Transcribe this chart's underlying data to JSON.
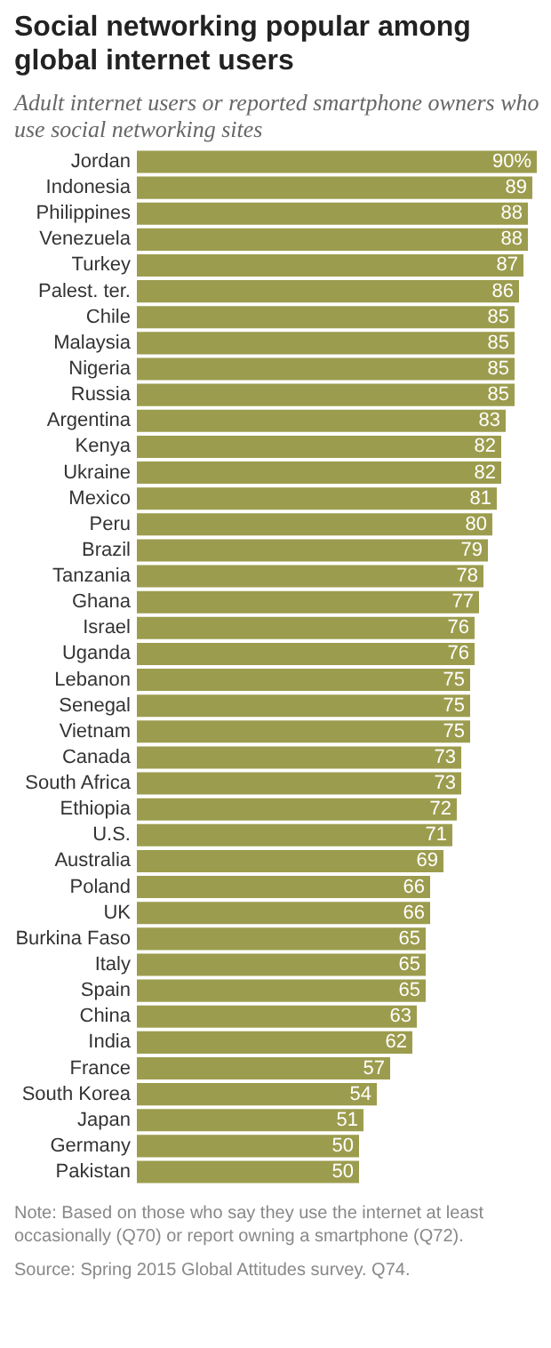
{
  "chart_data": {
    "type": "bar",
    "orientation": "horizontal",
    "title": "Social networking popular among global internet users",
    "subtitle": "Adult internet users or reported smartphone owners who use social networking sites",
    "categories": [
      "Jordan",
      "Indonesia",
      "Philippines",
      "Venezuela",
      "Turkey",
      "Palest. ter.",
      "Chile",
      "Malaysia",
      "Nigeria",
      "Russia",
      "Argentina",
      "Kenya",
      "Ukraine",
      "Mexico",
      "Peru",
      "Brazil",
      "Tanzania",
      "Ghana",
      "Israel",
      "Uganda",
      "Lebanon",
      "Senegal",
      "Vietnam",
      "Canada",
      "South Africa",
      "Ethiopia",
      "U.S.",
      "Australia",
      "Poland",
      "UK",
      "Burkina Faso",
      "Italy",
      "Spain",
      "China",
      "India",
      "France",
      "South Korea",
      "Japan",
      "Germany",
      "Pakistan"
    ],
    "values": [
      90,
      89,
      88,
      88,
      87,
      86,
      85,
      85,
      85,
      85,
      83,
      82,
      82,
      81,
      80,
      79,
      78,
      77,
      76,
      76,
      75,
      75,
      75,
      73,
      73,
      72,
      71,
      69,
      66,
      66,
      65,
      65,
      65,
      63,
      62,
      57,
      54,
      51,
      50,
      50
    ],
    "value_labels": [
      "90%",
      "89",
      "88",
      "88",
      "87",
      "86",
      "85",
      "85",
      "85",
      "85",
      "83",
      "82",
      "82",
      "81",
      "80",
      "79",
      "78",
      "77",
      "76",
      "76",
      "75",
      "75",
      "75",
      "73",
      "73",
      "72",
      "71",
      "69",
      "66",
      "66",
      "65",
      "65",
      "65",
      "63",
      "62",
      "57",
      "54",
      "51",
      "50",
      "50"
    ],
    "color": "#9c9c4e",
    "annotations": [
      "Note: Based on those who say they use the internet at least occasionally (Q70) or report owning a smartphone (Q72).",
      "Source: Spring 2015 Global Attitudes survey. Q74."
    ]
  }
}
